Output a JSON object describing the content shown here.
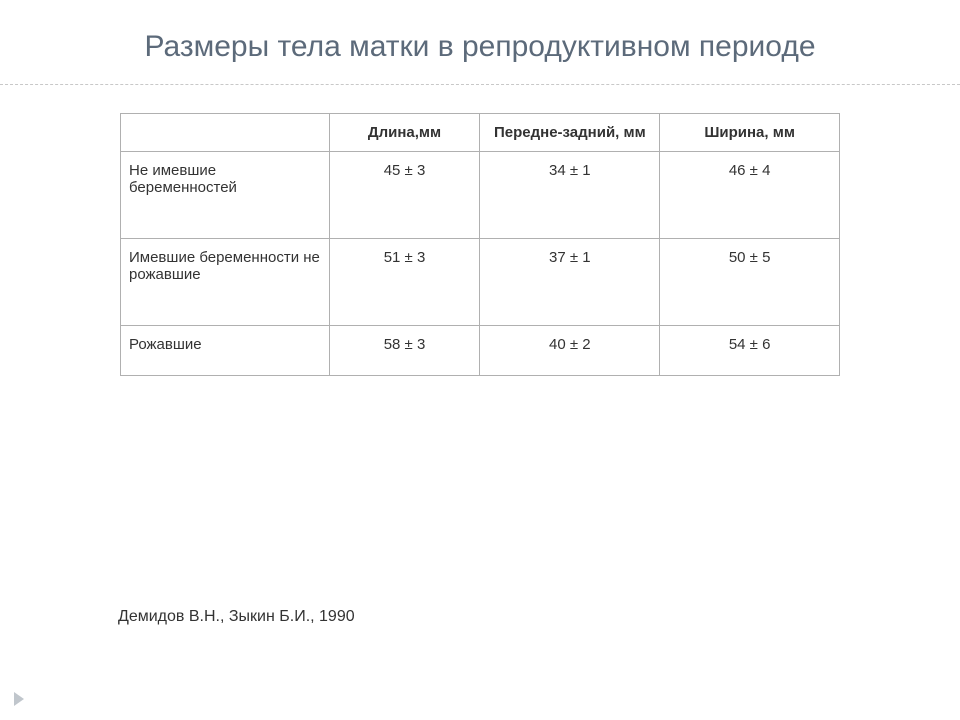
{
  "slide": {
    "title": "Размеры тела матки   в репродуктивном периоде",
    "colors": {
      "title_color": "#5c6a7a",
      "border_color": "#b0b0b0",
      "divider_color": "#c8c8c8",
      "text_color": "#333333",
      "background": "#ffffff",
      "marker_color": "#c0c6cc"
    },
    "title_fontsize": 30
  },
  "table": {
    "columns": [
      {
        "label": "",
        "width_pct": 29
      },
      {
        "label": "Длина,мм",
        "width_pct": 21
      },
      {
        "label": "Передне-задний, мм",
        "width_pct": 25
      },
      {
        "label": "Ширина, мм",
        "width_pct": 25
      }
    ],
    "rows": [
      {
        "label": "Не имевшие беременностей",
        "cells": [
          "45 ± 3",
          "34 ± 1",
          "46 ± 4"
        ]
      },
      {
        "label": "Имевшие беременности не рожавшие",
        "cells": [
          "51 ± 3",
          "37 ± 1",
          "50 ± 5"
        ]
      },
      {
        "label": "Рожавшие",
        "cells": [
          "58 ± 3",
          "40 ± 2",
          "54 ± 6"
        ]
      }
    ],
    "cell_fontsize": 15
  },
  "citation": "Демидов В.Н., Зыкин Б.И., 1990"
}
